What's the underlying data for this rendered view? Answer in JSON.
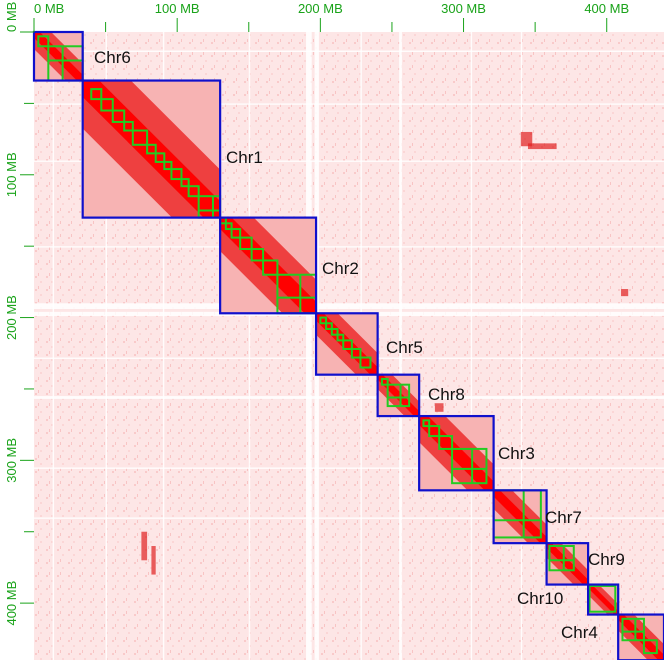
{
  "figure": {
    "title": "",
    "axis_unit": "MB",
    "colors": {
      "background": "#ffffff",
      "heat_low": "#fff2f2",
      "heat_high": "#ff0000",
      "chromosome_box": "#1010cc",
      "subdomain_box": "#22cc22",
      "tick_label": "#1aa31a",
      "chromosome_label": "#111111"
    }
  },
  "x_axis": {
    "ticks": [
      {
        "value": 0,
        "label": "0 MB"
      },
      {
        "value": 100,
        "label": "100 MB"
      },
      {
        "value": 200,
        "label": "200 MB"
      },
      {
        "value": 300,
        "label": "300 MB"
      },
      {
        "value": 400,
        "label": "400 MB"
      }
    ],
    "minor_ticks": [
      50,
      150,
      250,
      350
    ],
    "range": [
      0,
      440
    ]
  },
  "y_axis": {
    "ticks": [
      {
        "value": 0,
        "label": "0 MB"
      },
      {
        "value": 100,
        "label": "100 MB"
      },
      {
        "value": 200,
        "label": "200 MB"
      },
      {
        "value": 300,
        "label": "300 MB"
      },
      {
        "value": 400,
        "label": "400 MB"
      }
    ],
    "minor_ticks": [
      50,
      150,
      250,
      350
    ],
    "range": [
      0,
      440
    ]
  },
  "chromosomes": [
    {
      "name": "Chr6",
      "start": 0,
      "end": 34
    },
    {
      "name": "Chr1",
      "start": 34,
      "end": 130
    },
    {
      "name": "Chr2",
      "start": 130,
      "end": 197
    },
    {
      "name": "Chr5",
      "start": 197,
      "end": 240
    },
    {
      "name": "Chr8",
      "start": 240,
      "end": 269
    },
    {
      "name": "Chr3",
      "start": 269,
      "end": 321
    },
    {
      "name": "Chr7",
      "start": 321,
      "end": 358
    },
    {
      "name": "Chr9",
      "start": 358,
      "end": 387
    },
    {
      "name": "Chr10",
      "start": 387,
      "end": 408
    },
    {
      "name": "Chr4",
      "start": 408,
      "end": 440
    }
  ]
}
